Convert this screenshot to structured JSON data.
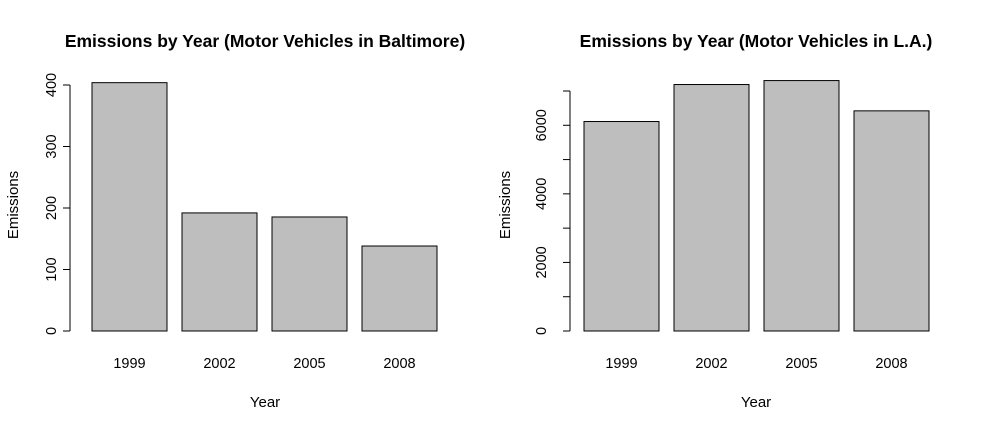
{
  "chart_data": [
    {
      "type": "bar",
      "title": "Emissions by Year (Motor Vehicles in Baltimore)",
      "xlabel": "Year",
      "ylabel": "Emissions",
      "categories": [
        "1999",
        "2002",
        "2005",
        "2008"
      ],
      "values": [
        403.8,
        192.0,
        185.4,
        138.2
      ],
      "ylim": [
        0,
        400
      ],
      "yticks": [
        0,
        100,
        200,
        300,
        400
      ],
      "ytick_labels": [
        "0",
        "100",
        "200",
        "300",
        "400"
      ],
      "bar_color": "#bebebe",
      "grid": false,
      "legend": "none"
    },
    {
      "type": "bar",
      "title": "Emissions by Year (Motor Vehicles in L.A.)",
      "xlabel": "Year",
      "ylabel": "Emissions",
      "categories": [
        "1999",
        "2002",
        "2005",
        "2008"
      ],
      "values": [
        6109.7,
        7188.7,
        7304.1,
        6421.0
      ],
      "ylim": [
        0,
        7000
      ],
      "yticks": [
        0,
        1000,
        2000,
        3000,
        4000,
        5000,
        6000,
        7000
      ],
      "ytick_labels": [
        "0",
        "",
        "2000",
        "",
        "4000",
        "",
        "6000",
        ""
      ],
      "bar_color": "#bebebe",
      "grid": false,
      "legend": "none"
    }
  ]
}
